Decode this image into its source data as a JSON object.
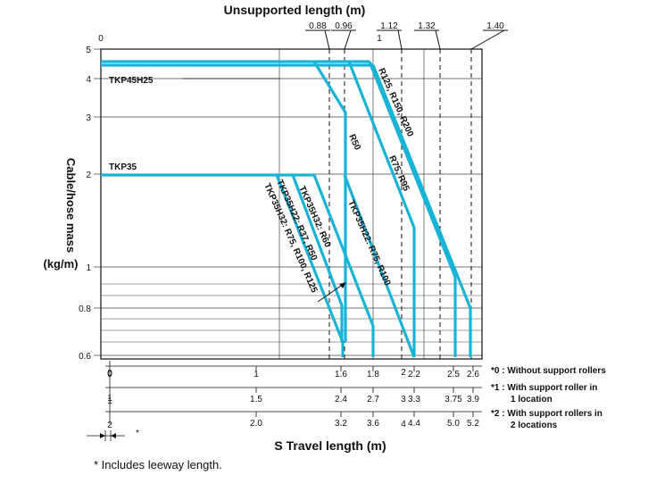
{
  "chart_data": {
    "type": "line",
    "top_axis_title": "Unsupported length (m)",
    "top_axis_ticks": [
      "0.88",
      "0.96",
      "1.12",
      "1.32",
      "1.40"
    ],
    "top_axis_inner_labels": [
      "0",
      "1"
    ],
    "y_axis_title_lines": [
      "Cable/hose mass",
      "(kg/m)"
    ],
    "y_ticks": [
      "5",
      "4",
      "3",
      "2",
      "1",
      "0.8",
      "0.6"
    ],
    "y_scale": "log",
    "ylim": [
      0.6,
      5
    ],
    "x_axis_title": "S Travel length (m)",
    "travel_axes": [
      {
        "prefix": "0",
        "labels": [
          "1",
          "1.6",
          "1.8",
          "2.2",
          "2.5",
          "2.6"
        ]
      },
      {
        "prefix": "1",
        "labels": [
          "1.5",
          "2.4",
          "2.7",
          "3.3",
          "3.75",
          "3.9"
        ]
      },
      {
        "prefix": "2",
        "labels": [
          "2.0",
          "3.2",
          "3.6",
          "4.4",
          "5.0",
          "5.2"
        ]
      }
    ],
    "axis_markers": [
      "0",
      "1",
      "2",
      "3",
      "4"
    ],
    "series": [
      {
        "name": "TKP45H25",
        "mass_kg_m": 4.4,
        "radius_labels": [
          "R50",
          "R75, R95",
          "R125, R150, R200"
        ],
        "end_travel_m_0": [
          1.8,
          2.2,
          2.5
        ]
      },
      {
        "name": "TKP35",
        "mass_kg_m": 2.0,
        "radius_labels": [
          "TKP35H32: R75, R100, R125",
          "TKP35H22: R37, R50",
          "TKP35H32: R60",
          "TKP35H22: R75, R100"
        ],
        "end_travel_m_0": [
          1.6,
          1.8,
          2.2,
          2.6
        ]
      }
    ],
    "grid": true,
    "notes": [
      "*0 : Without support rollers",
      "*1 : With support roller in",
      "1 location",
      "*2 : With support rollers in",
      "2 locations"
    ],
    "footnote": "* Includes leeway length.",
    "leeway_mark": "*",
    "colors": {
      "series": "#19b3d6",
      "axis": "#111111",
      "grid": "#444444"
    }
  }
}
